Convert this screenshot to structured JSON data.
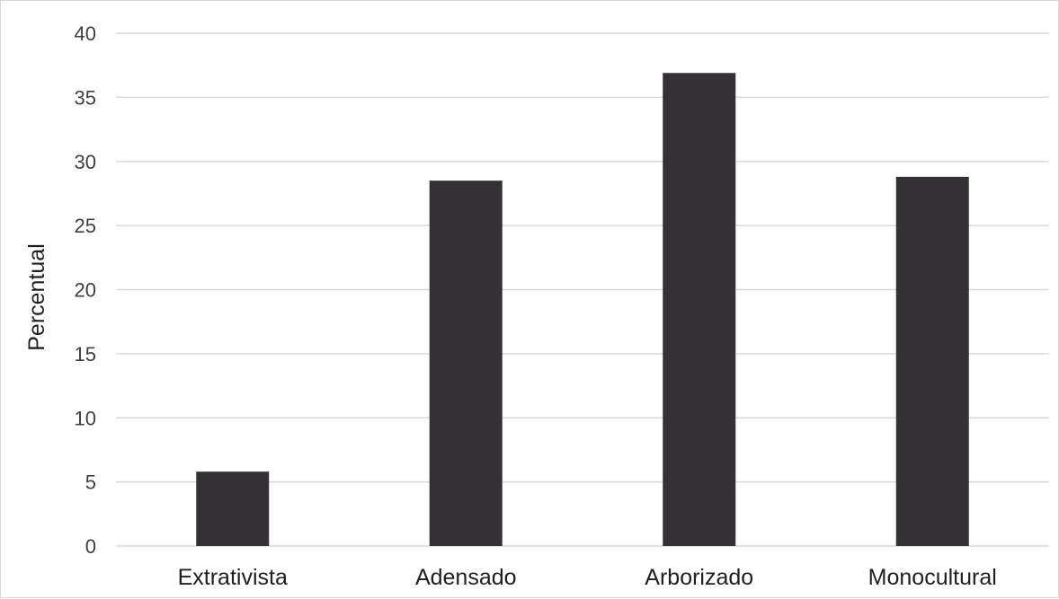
{
  "chart_data": {
    "type": "bar",
    "title": "",
    "xlabel": "",
    "ylabel": "Percentual",
    "ylim": [
      0,
      40
    ],
    "yticks": [
      0,
      5,
      10,
      15,
      20,
      25,
      30,
      35,
      40
    ],
    "grid": true,
    "categories": [
      "Extrativista",
      "Adensado",
      "Arborizado",
      "Monocultural"
    ],
    "values": [
      5.8,
      28.5,
      36.9,
      28.8
    ],
    "bar_color": "#333133"
  }
}
